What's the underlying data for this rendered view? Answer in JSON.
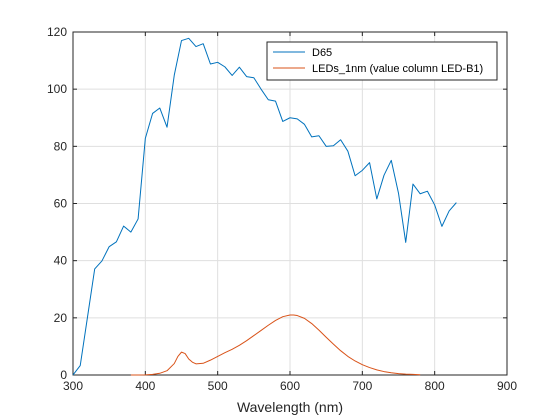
{
  "chart_data": {
    "type": "line",
    "title": "",
    "xlabel": "Wavelength (nm)",
    "ylabel": "",
    "xlim": [
      300,
      900
    ],
    "ylim": [
      0,
      120
    ],
    "xticks": [
      300,
      400,
      500,
      600,
      700,
      800,
      900
    ],
    "yticks": [
      0,
      20,
      40,
      60,
      80,
      100,
      120
    ],
    "grid": true,
    "legend_position": "top-right",
    "series": [
      {
        "name": "D65",
        "color": "#0072BD",
        "x": [
          300,
          310,
          320,
          330,
          340,
          350,
          360,
          370,
          380,
          390,
          400,
          410,
          420,
          430,
          440,
          450,
          460,
          470,
          480,
          490,
          500,
          510,
          520,
          530,
          540,
          550,
          560,
          570,
          580,
          590,
          600,
          610,
          620,
          630,
          640,
          650,
          660,
          670,
          680,
          690,
          700,
          710,
          720,
          730,
          740,
          750,
          760,
          770,
          780,
          790,
          800,
          810,
          820,
          830
        ],
        "y": [
          0.03,
          3.3,
          20.2,
          37.1,
          39.9,
          44.9,
          46.6,
          52.1,
          50.0,
          54.6,
          82.8,
          91.5,
          93.4,
          86.7,
          104.9,
          117.0,
          117.8,
          114.9,
          115.9,
          108.8,
          109.4,
          107.8,
          104.8,
          107.7,
          104.4,
          104.0,
          100.0,
          96.3,
          95.8,
          88.7,
          90.0,
          89.6,
          87.7,
          83.3,
          83.7,
          80.0,
          80.2,
          82.3,
          78.3,
          69.7,
          71.6,
          74.3,
          61.6,
          69.9,
          75.1,
          63.6,
          46.4,
          66.8,
          63.4,
          64.3,
          59.5,
          52.0,
          57.4,
          60.3
        ]
      },
      {
        "name": "LEDs_1nm (value column LED-B1)",
        "color": "#D95319",
        "x": [
          380,
          390,
          400,
          410,
          420,
          430,
          440,
          445,
          450,
          455,
          460,
          465,
          470,
          480,
          490,
          500,
          510,
          520,
          530,
          540,
          550,
          560,
          570,
          580,
          590,
          600,
          605,
          610,
          620,
          630,
          640,
          650,
          660,
          670,
          680,
          690,
          700,
          710,
          720,
          730,
          740,
          750,
          760,
          770,
          780
        ],
        "y": [
          0,
          0,
          0.05,
          0.2,
          0.6,
          1.5,
          4.0,
          6.5,
          8.0,
          7.5,
          5.6,
          4.5,
          3.9,
          4.1,
          5.2,
          6.5,
          7.8,
          9.0,
          10.4,
          12.0,
          13.8,
          15.6,
          17.4,
          19.1,
          20.4,
          21.0,
          21.0,
          20.8,
          19.8,
          18.0,
          15.7,
          13.2,
          10.8,
          8.5,
          6.5,
          4.9,
          3.6,
          2.6,
          1.8,
          1.2,
          0.8,
          0.5,
          0.3,
          0.2,
          0.1
        ]
      }
    ]
  }
}
